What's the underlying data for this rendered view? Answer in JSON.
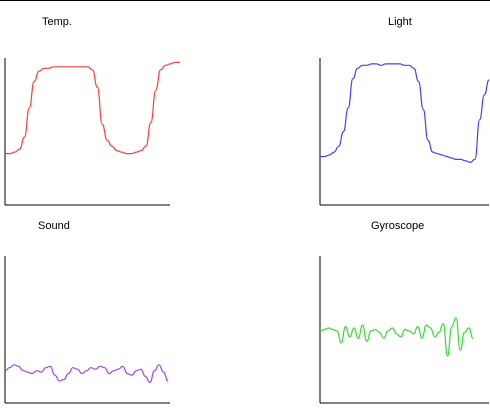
{
  "chart_data": [
    {
      "type": "line",
      "title": "Temp.",
      "color": "#ff3b3b",
      "axis_ticks": false,
      "x": [
        0,
        1,
        2,
        3,
        4,
        5,
        6,
        7,
        8,
        9,
        10,
        11,
        12,
        13,
        14,
        15,
        16,
        17,
        18,
        19,
        20,
        21,
        22,
        23,
        24,
        25,
        26,
        27,
        28,
        29,
        30,
        31,
        32,
        33,
        34,
        35,
        36
      ],
      "values": [
        35,
        35,
        36,
        38,
        46,
        66,
        84,
        91,
        93,
        93,
        94,
        94,
        94,
        94,
        94,
        94,
        94,
        94,
        92,
        80,
        55,
        44,
        40,
        37,
        36,
        35,
        35,
        36,
        37,
        40,
        56,
        78,
        92,
        95,
        96,
        97,
        97
      ]
    },
    {
      "type": "line",
      "title": "Light",
      "color": "#4040ff",
      "axis_ticks": false,
      "x": [
        0,
        1,
        2,
        3,
        4,
        5,
        6,
        7,
        8,
        9,
        10,
        11,
        12,
        13,
        14,
        15,
        16,
        17,
        18,
        19,
        20,
        21,
        22,
        23,
        24,
        25,
        26,
        27,
        28,
        29,
        30,
        31,
        32,
        33,
        34,
        35,
        36
      ],
      "values": [
        33,
        33,
        34,
        36,
        40,
        50,
        66,
        86,
        93,
        95,
        95,
        96,
        96,
        95,
        96,
        96,
        96,
        96,
        95,
        95,
        93,
        84,
        65,
        44,
        36,
        35,
        34,
        33,
        32,
        31,
        31,
        30,
        29,
        31,
        58,
        75,
        85
      ]
    },
    {
      "type": "line",
      "title": "Sound",
      "color": "#a040ff",
      "axis_ticks": false,
      "x": [
        0,
        1,
        2,
        3,
        4,
        5,
        6,
        7,
        8,
        9,
        10,
        11,
        12,
        13,
        14,
        15,
        16,
        17,
        18,
        19,
        20,
        21,
        22,
        23,
        24,
        25,
        26,
        27,
        28,
        29,
        30,
        31,
        32,
        33,
        34,
        35,
        36
      ],
      "values": [
        22,
        24,
        26,
        25,
        22,
        21,
        20,
        22,
        21,
        24,
        25,
        19,
        15,
        16,
        20,
        24,
        23,
        20,
        22,
        24,
        23,
        25,
        24,
        20,
        22,
        23,
        25,
        20,
        19,
        22,
        23,
        18,
        14,
        22,
        26,
        21,
        15
      ]
    },
    {
      "type": "line",
      "title": "Gyroscope",
      "color": "#33dd33",
      "axis_ticks": false,
      "x": [
        0,
        1,
        2,
        3,
        4,
        5,
        6,
        7,
        8,
        9,
        10,
        11,
        12,
        13,
        14,
        15,
        16,
        17,
        18,
        19,
        20,
        21,
        22,
        23,
        24,
        25,
        26,
        27,
        28,
        29,
        30,
        31,
        32,
        33,
        34,
        35,
        36
      ],
      "values": [
        49,
        50,
        51,
        50,
        49,
        41,
        52,
        45,
        51,
        44,
        53,
        42,
        49,
        50,
        48,
        44,
        49,
        51,
        47,
        45,
        50,
        49,
        47,
        52,
        44,
        53,
        51,
        45,
        48,
        54,
        32,
        52,
        58,
        36,
        48,
        51,
        44
      ]
    }
  ]
}
